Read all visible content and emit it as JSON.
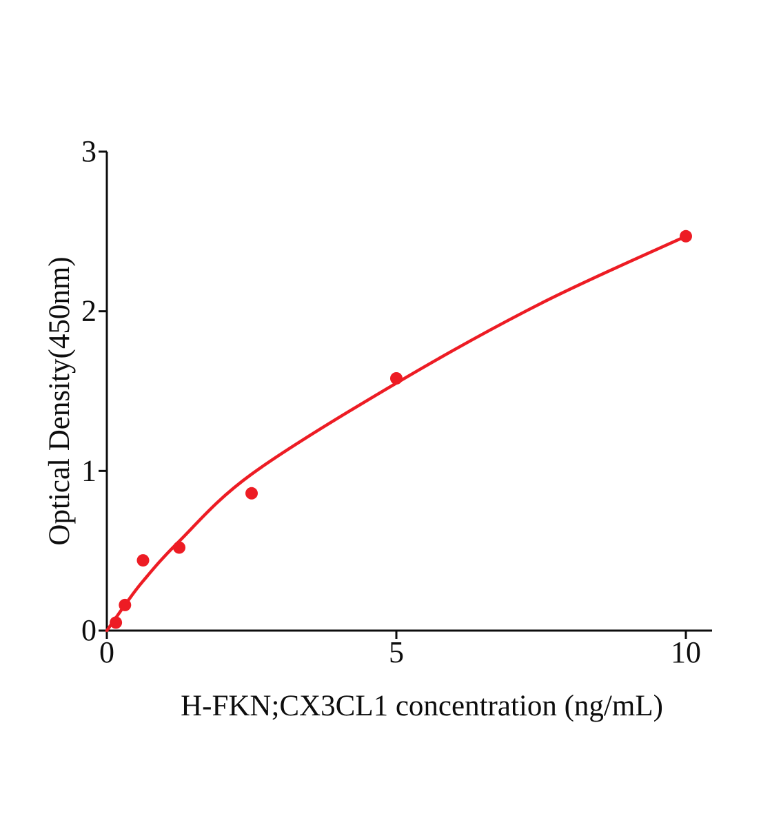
{
  "figure": {
    "background_color": "#ffffff",
    "description": "ELISA standard curve"
  },
  "chart_data": {
    "type": "scatter",
    "title": "",
    "xlabel": "H-FKN;CX3CL1 concentration (ng/mL)",
    "ylabel": "Optical Density(450nm)",
    "xlim": [
      0,
      10.45
    ],
    "ylim": [
      0,
      3
    ],
    "x_ticks": [
      0,
      5,
      10
    ],
    "y_ticks": [
      0,
      1,
      2,
      3
    ],
    "grid": false,
    "legend": false,
    "accent_color": "#ed1c24",
    "axis_color": "#0d0d0d",
    "series": [
      {
        "name": "standard-points",
        "type": "scatter",
        "marker": "circle",
        "color": "#ed1c24",
        "x": [
          0.156,
          0.3125,
          0.625,
          1.25,
          2.5,
          5,
          10
        ],
        "y": [
          0.05,
          0.16,
          0.44,
          0.52,
          0.86,
          1.58,
          2.47
        ]
      },
      {
        "name": "fit-curve",
        "type": "line",
        "color": "#ed1c24",
        "x": [
          0,
          0.156,
          0.3125,
          0.625,
          1.25,
          2.5,
          5,
          7.5,
          10
        ],
        "y": [
          0.0,
          0.08,
          0.16,
          0.31,
          0.56,
          0.98,
          1.55,
          2.05,
          2.47
        ]
      }
    ]
  }
}
